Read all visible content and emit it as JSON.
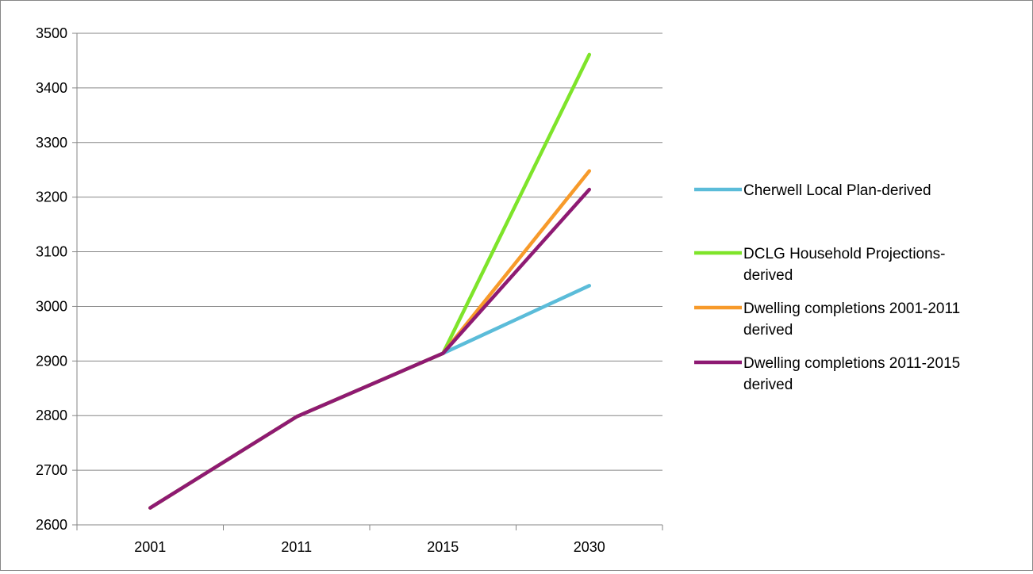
{
  "chart_data": {
    "type": "line",
    "categories": [
      "2001",
      "2011",
      "2015",
      "2030"
    ],
    "ylim": [
      2600,
      3500
    ],
    "y_ticks": [
      "2600",
      "2700",
      "2800",
      "2900",
      "3000",
      "3100",
      "3200",
      "3300",
      "3400",
      "3500"
    ],
    "grid": true,
    "legend_position": "right",
    "series": [
      {
        "name": "Cherwell Local Plan-derived",
        "name_lines": [
          "Cherwell Local Plan-derived"
        ],
        "color": "#5bbcd9",
        "values": [
          2631,
          2798,
          2914,
          3038
        ]
      },
      {
        "name": "DCLG Household Projections-derived",
        "name_lines": [
          "DCLG Household Projections-",
          "derived"
        ],
        "color": "#7ee42a",
        "values": [
          2631,
          2798,
          2914,
          3461
        ]
      },
      {
        "name": "Dwelling completions 2001-2011 derived",
        "name_lines": [
          "Dwelling completions 2001-2011",
          "derived"
        ],
        "color": "#f79a2a",
        "values": [
          2631,
          2798,
          2914,
          3248
        ]
      },
      {
        "name": "Dwelling completions 2011-2015 derived",
        "name_lines": [
          "Dwelling completions 2011-2015",
          "derived"
        ],
        "color": "#8e1a73",
        "values": [
          2631,
          2798,
          2914,
          3214
        ]
      }
    ]
  }
}
